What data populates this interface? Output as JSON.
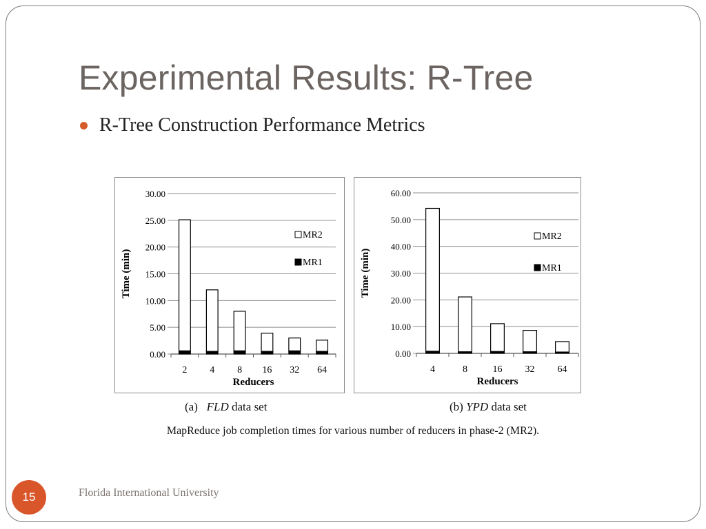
{
  "slide": {
    "title": "Experimental Results: R-Tree",
    "bullet": "R-Tree Construction Performance Metrics",
    "caption": "MapReduce job completion times for various number of reducers in phase-2 (MR2).",
    "page_number": "15",
    "footer": "Florida International University",
    "accent_color": "#d9562a"
  },
  "captions": {
    "a_prefix": "(a)",
    "a_italic": "FLD",
    "a_suffix": "data set",
    "b_prefix": "(b)",
    "b_italic": "YPD",
    "b_suffix": "data set"
  },
  "chart_data": [
    {
      "type": "bar",
      "stacked": true,
      "title": "",
      "xlabel": "Reducers",
      "ylabel": "Time (min)",
      "categories": [
        "2",
        "4",
        "8",
        "16",
        "32",
        "64"
      ],
      "yticks": [
        "0.00",
        "5.00",
        "10.00",
        "15.00",
        "20.00",
        "25.00",
        "30.00"
      ],
      "ylim": [
        0,
        30
      ],
      "grid": true,
      "legend_position": "right",
      "series": [
        {
          "name": "MR1",
          "color": "#000000",
          "values": [
            0.6,
            0.5,
            0.6,
            0.5,
            0.6,
            0.5
          ]
        },
        {
          "name": "MR2",
          "color": "#ffffff",
          "values": [
            24.5,
            11.5,
            7.4,
            3.4,
            2.4,
            2.1
          ]
        }
      ]
    },
    {
      "type": "bar",
      "stacked": true,
      "title": "",
      "xlabel": "Reducers",
      "ylabel": "Time (min)",
      "categories": [
        "4",
        "8",
        "16",
        "32",
        "64"
      ],
      "yticks": [
        "0.00",
        "10.00",
        "20.00",
        "30.00",
        "40.00",
        "50.00",
        "60.00"
      ],
      "ylim": [
        0,
        60
      ],
      "grid": true,
      "legend_position": "right",
      "series": [
        {
          "name": "MR1",
          "color": "#000000",
          "values": [
            0.8,
            0.6,
            0.7,
            0.6,
            0.5
          ]
        },
        {
          "name": "MR2",
          "color": "#ffffff",
          "values": [
            53.4,
            20.5,
            10.4,
            8.0,
            3.9
          ]
        }
      ]
    }
  ]
}
